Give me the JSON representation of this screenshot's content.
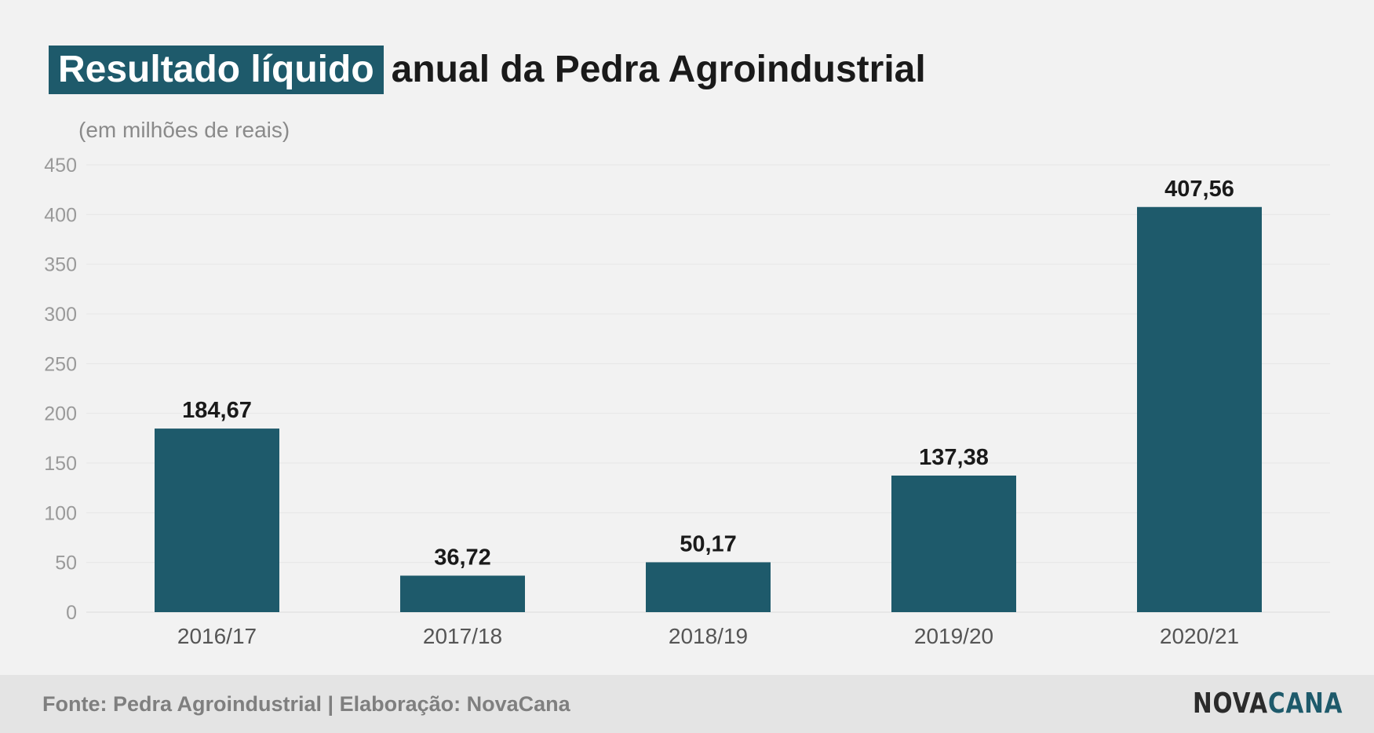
{
  "title": {
    "highlight": "Resultado líquido",
    "rest": "anual da Pedra Agroindustrial"
  },
  "unit_label": "(em milhões de reais)",
  "footer": {
    "source": "Fonte: Pedra Agroindustrial | Elaboração: NovaCana",
    "logo_part1": "NOVA",
    "logo_part2": "CANA"
  },
  "colors": {
    "bar": "#1e5a6b",
    "highlight_bg": "#1e5a6b",
    "background": "#f2f2f2",
    "footer_bg": "#e4e4e4"
  },
  "chart_data": {
    "type": "bar",
    "categories": [
      "2016/17",
      "2017/18",
      "2018/19",
      "2019/20",
      "2020/21"
    ],
    "values": [
      184.67,
      36.72,
      50.17,
      137.38,
      407.56
    ],
    "value_labels": [
      "184,67",
      "36,72",
      "50,17",
      "137,38",
      "407,56"
    ],
    "yticks": [
      0,
      50,
      100,
      150,
      200,
      250,
      300,
      350,
      400,
      450
    ],
    "ylim": [
      0,
      450
    ],
    "grid": true,
    "legend": "none"
  }
}
